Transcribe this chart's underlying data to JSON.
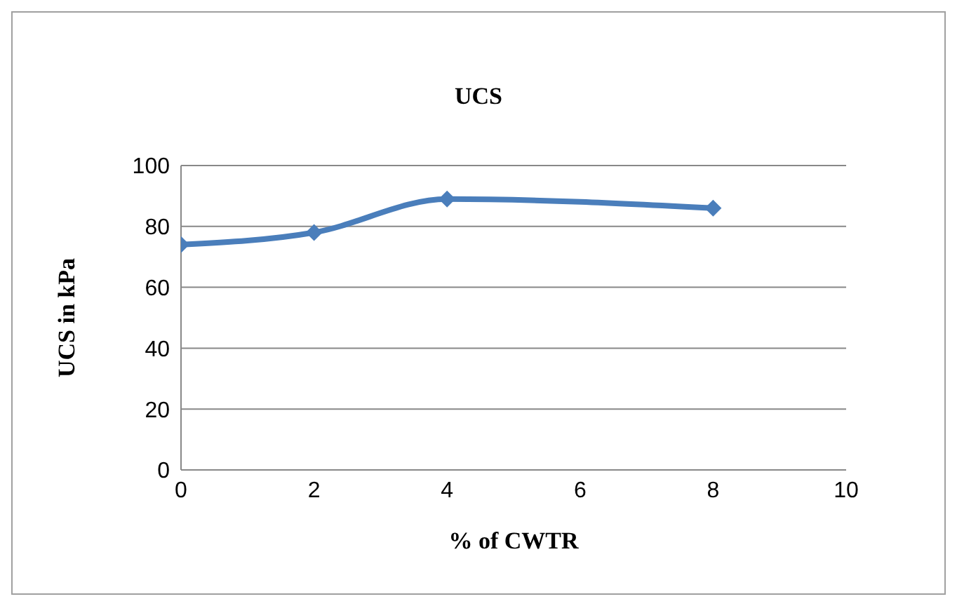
{
  "chart_data": {
    "type": "line",
    "title": "UCS",
    "xlabel": "% of CWTR",
    "ylabel": "UCS  in kPa",
    "x": [
      0,
      2,
      4,
      8
    ],
    "series": [
      {
        "color": "#4a7ebb",
        "values": [
          74,
          78,
          89,
          86
        ]
      }
    ],
    "xlim": [
      0,
      10
    ],
    "xticks": [
      0,
      2,
      4,
      6,
      8,
      10
    ],
    "ylim": [
      0,
      100
    ],
    "yticks": [
      0,
      20,
      40,
      60,
      80,
      100
    ],
    "grid": "y",
    "legend": false,
    "marker": "diamond",
    "line_style": "solid"
  }
}
